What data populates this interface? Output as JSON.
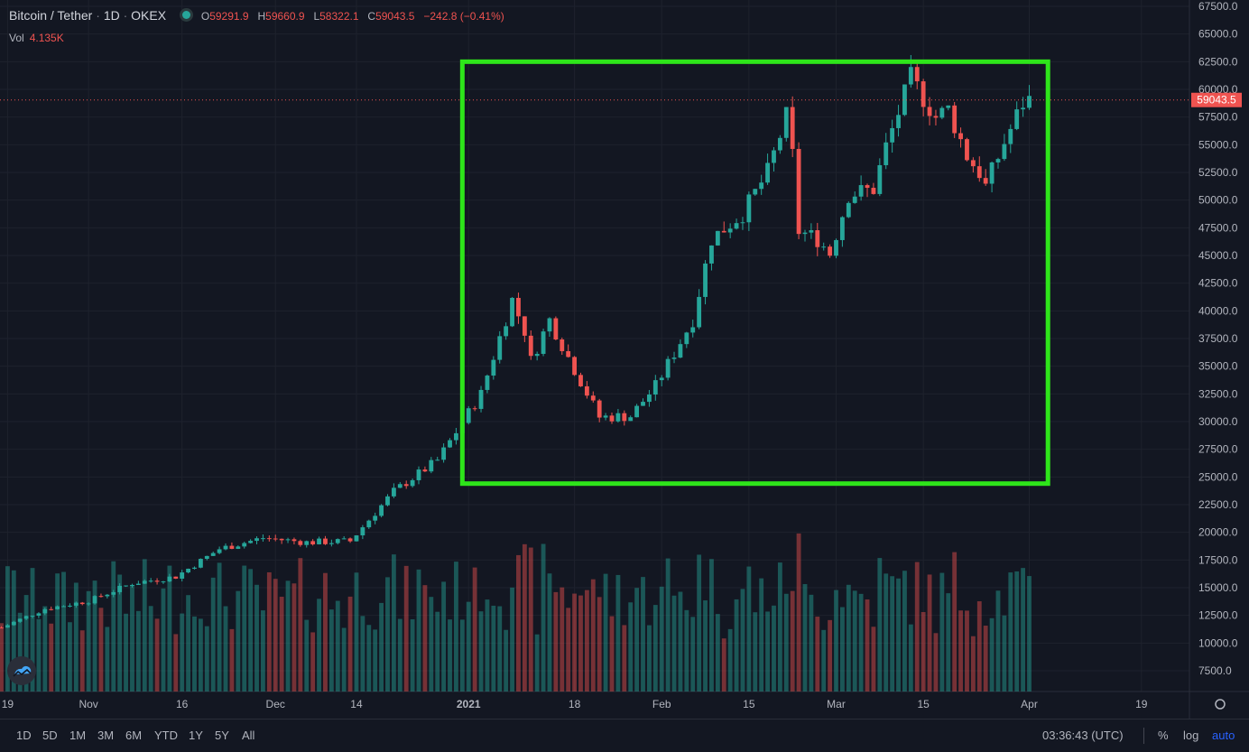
{
  "header": {
    "symbol": "Bitcoin / Tether",
    "interval": "1D",
    "exchange": "OKEX",
    "o_label": "O",
    "o_value": "59291.9",
    "h_label": "H",
    "h_value": "59660.9",
    "l_label": "L",
    "l_value": "58322.1",
    "c_label": "C",
    "c_value": "59043.5",
    "change": "−242.8 (−0.41%)"
  },
  "volume": {
    "label": "Vol",
    "value": "4.135K"
  },
  "price_scale": {
    "labels": [
      "67500.0",
      "65000.0",
      "62500.0",
      "60000.0",
      "57500.0",
      "55000.0",
      "52500.0",
      "50000.0",
      "47500.0",
      "45000.0",
      "42500.0",
      "40000.0",
      "37500.0",
      "35000.0",
      "32500.0",
      "30000.0",
      "27500.0",
      "25000.0",
      "22500.0",
      "20000.0",
      "17500.0",
      "15000.0",
      "12500.0",
      "10000.0",
      "7500.0"
    ],
    "current_price": "59043.5"
  },
  "time_axis": {
    "labels": [
      "19",
      "Nov",
      "16",
      "Dec",
      "14",
      "2021",
      "18",
      "Feb",
      "15",
      "Mar",
      "15",
      "Apr",
      "19"
    ]
  },
  "bottom_bar": {
    "ranges": [
      "1D",
      "5D",
      "1M",
      "3M",
      "6M",
      "YTD",
      "1Y",
      "5Y",
      "All"
    ],
    "clock": "03:36:43 (UTC)",
    "options": [
      "%",
      "log",
      "auto"
    ]
  },
  "colors": {
    "up": "#26a69a",
    "down": "#ef5350",
    "highlight_box": "#2ee51a",
    "background": "#131722",
    "grid": "#1e222d"
  },
  "chart_data": {
    "type": "candlestick",
    "title": "Bitcoin / Tether",
    "interval": "1D",
    "x_range": [
      "2020-10-18",
      "2021-04-01"
    ],
    "ylim": [
      7500,
      67500
    ],
    "series": [
      {
        "kind": "close",
        "points": [
          [
            "2020-10-18",
            11400
          ],
          [
            "2020-10-25",
            13100
          ],
          [
            "2020-11-01",
            13800
          ],
          [
            "2020-11-08",
            15400
          ],
          [
            "2020-11-15",
            16000
          ],
          [
            "2020-11-22",
            18500
          ],
          [
            "2020-11-29",
            19500
          ],
          [
            "2020-12-06",
            19100
          ],
          [
            "2020-12-13",
            19200
          ],
          [
            "2020-12-20",
            23700
          ],
          [
            "2020-12-27",
            26500
          ],
          [
            "2021-01-03",
            32500
          ],
          [
            "2021-01-08",
            41000
          ],
          [
            "2021-01-10",
            38200
          ],
          [
            "2021-01-11",
            35500
          ],
          [
            "2021-01-14",
            39200
          ],
          [
            "2021-01-17",
            35800
          ],
          [
            "2021-01-22",
            30400
          ],
          [
            "2021-01-27",
            30500
          ],
          [
            "2021-01-31",
            33200
          ],
          [
            "2021-02-06",
            39200
          ],
          [
            "2021-02-09",
            46500
          ],
          [
            "2021-02-14",
            48800
          ],
          [
            "2021-02-18",
            52500
          ],
          [
            "2021-02-21",
            57500
          ],
          [
            "2021-02-22",
            54000
          ],
          [
            "2021-02-23",
            47200
          ],
          [
            "2021-02-26",
            46500
          ],
          [
            "2021-02-28",
            45200
          ],
          [
            "2021-03-03",
            50500
          ],
          [
            "2021-03-07",
            51000
          ],
          [
            "2021-03-09",
            54800
          ],
          [
            "2021-03-13",
            61000
          ],
          [
            "2021-03-17",
            57500
          ],
          [
            "2021-03-19",
            58200
          ],
          [
            "2021-03-22",
            54000
          ],
          [
            "2021-03-24",
            52500
          ],
          [
            "2021-03-25",
            51200
          ],
          [
            "2021-03-28",
            55200
          ],
          [
            "2021-03-31",
            58800
          ],
          [
            "2021-04-01",
            59043.5
          ]
        ]
      }
    ],
    "volume_ylim": [
      0,
      20000
    ],
    "annotation": {
      "type": "rectangle",
      "from": [
        "2020-12-31",
        24400
      ],
      "to": [
        "2021-04-04",
        62500
      ]
    },
    "grid": true
  }
}
